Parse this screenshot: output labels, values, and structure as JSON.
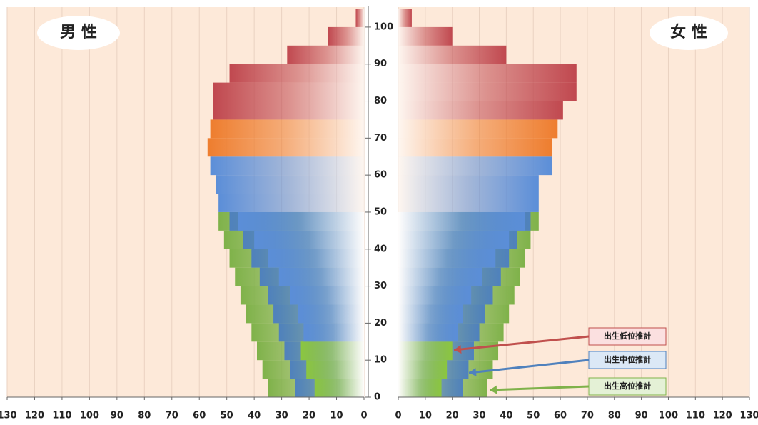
{
  "chart_data": {
    "type": "pyramid",
    "panels": [
      "男 性",
      "女 性"
    ],
    "ages": [
      0,
      5,
      10,
      15,
      20,
      25,
      30,
      35,
      40,
      45,
      50,
      55,
      60,
      65,
      70,
      75,
      80,
      85,
      90,
      95,
      100
    ],
    "colors": [
      "#8cc63f",
      "#8cc63f",
      "#8cc63f",
      "#5b8ed8",
      "#5b8ed8",
      "#5b8ed8",
      "#5b8ed8",
      "#5b8ed8",
      "#5b8ed8",
      "#5b8ed8",
      "#5b8ed8",
      "#5b8ed8",
      "#5b8ed8",
      "#ee7d2e",
      "#ee7d2e",
      "#c0484f",
      "#c0484f",
      "#c0484f",
      "#c0484f",
      "#c0484f",
      "#c0484f"
    ],
    "male": [
      18,
      21,
      23,
      22,
      24,
      27,
      31,
      35,
      40,
      46,
      53,
      54,
      56,
      57,
      56,
      55,
      55,
      49,
      28,
      13,
      3
    ],
    "female": [
      16,
      18,
      20,
      22,
      24,
      27,
      31,
      36,
      41,
      47,
      52,
      52,
      57,
      57,
      59,
      61,
      66,
      66,
      40,
      20,
      5
    ],
    "projections": [
      {
        "name": "出生低位推計",
        "color": "#c0504d",
        "fill": "#fbe0e0"
      },
      {
        "name": "出生中位推計",
        "color": "#4f81bd",
        "fill": "#dbe8f6",
        "male": [
          25,
          27,
          29,
          31,
          33,
          35,
          38,
          41,
          44,
          49
        ],
        "female": [
          24,
          26,
          28,
          30,
          32,
          35,
          38,
          41,
          44,
          49
        ]
      },
      {
        "name": "出生高位推計",
        "color": "#7fb24a",
        "fill": "#e4f1d6",
        "male": [
          35,
          37,
          39,
          41,
          43,
          45,
          47,
          49,
          51,
          53
        ],
        "female": [
          33,
          35,
          37,
          39,
          41,
          43,
          45,
          47,
          49,
          52
        ]
      }
    ],
    "xlim": [
      0,
      130
    ],
    "xticks": [
      0,
      10,
      20,
      30,
      40,
      50,
      60,
      70,
      80,
      90,
      100,
      110,
      120,
      130
    ],
    "ylim": [
      0,
      105
    ],
    "yticks": [
      0,
      10,
      20,
      30,
      40,
      50,
      60,
      70,
      80,
      90,
      100
    ],
    "grid": true
  }
}
